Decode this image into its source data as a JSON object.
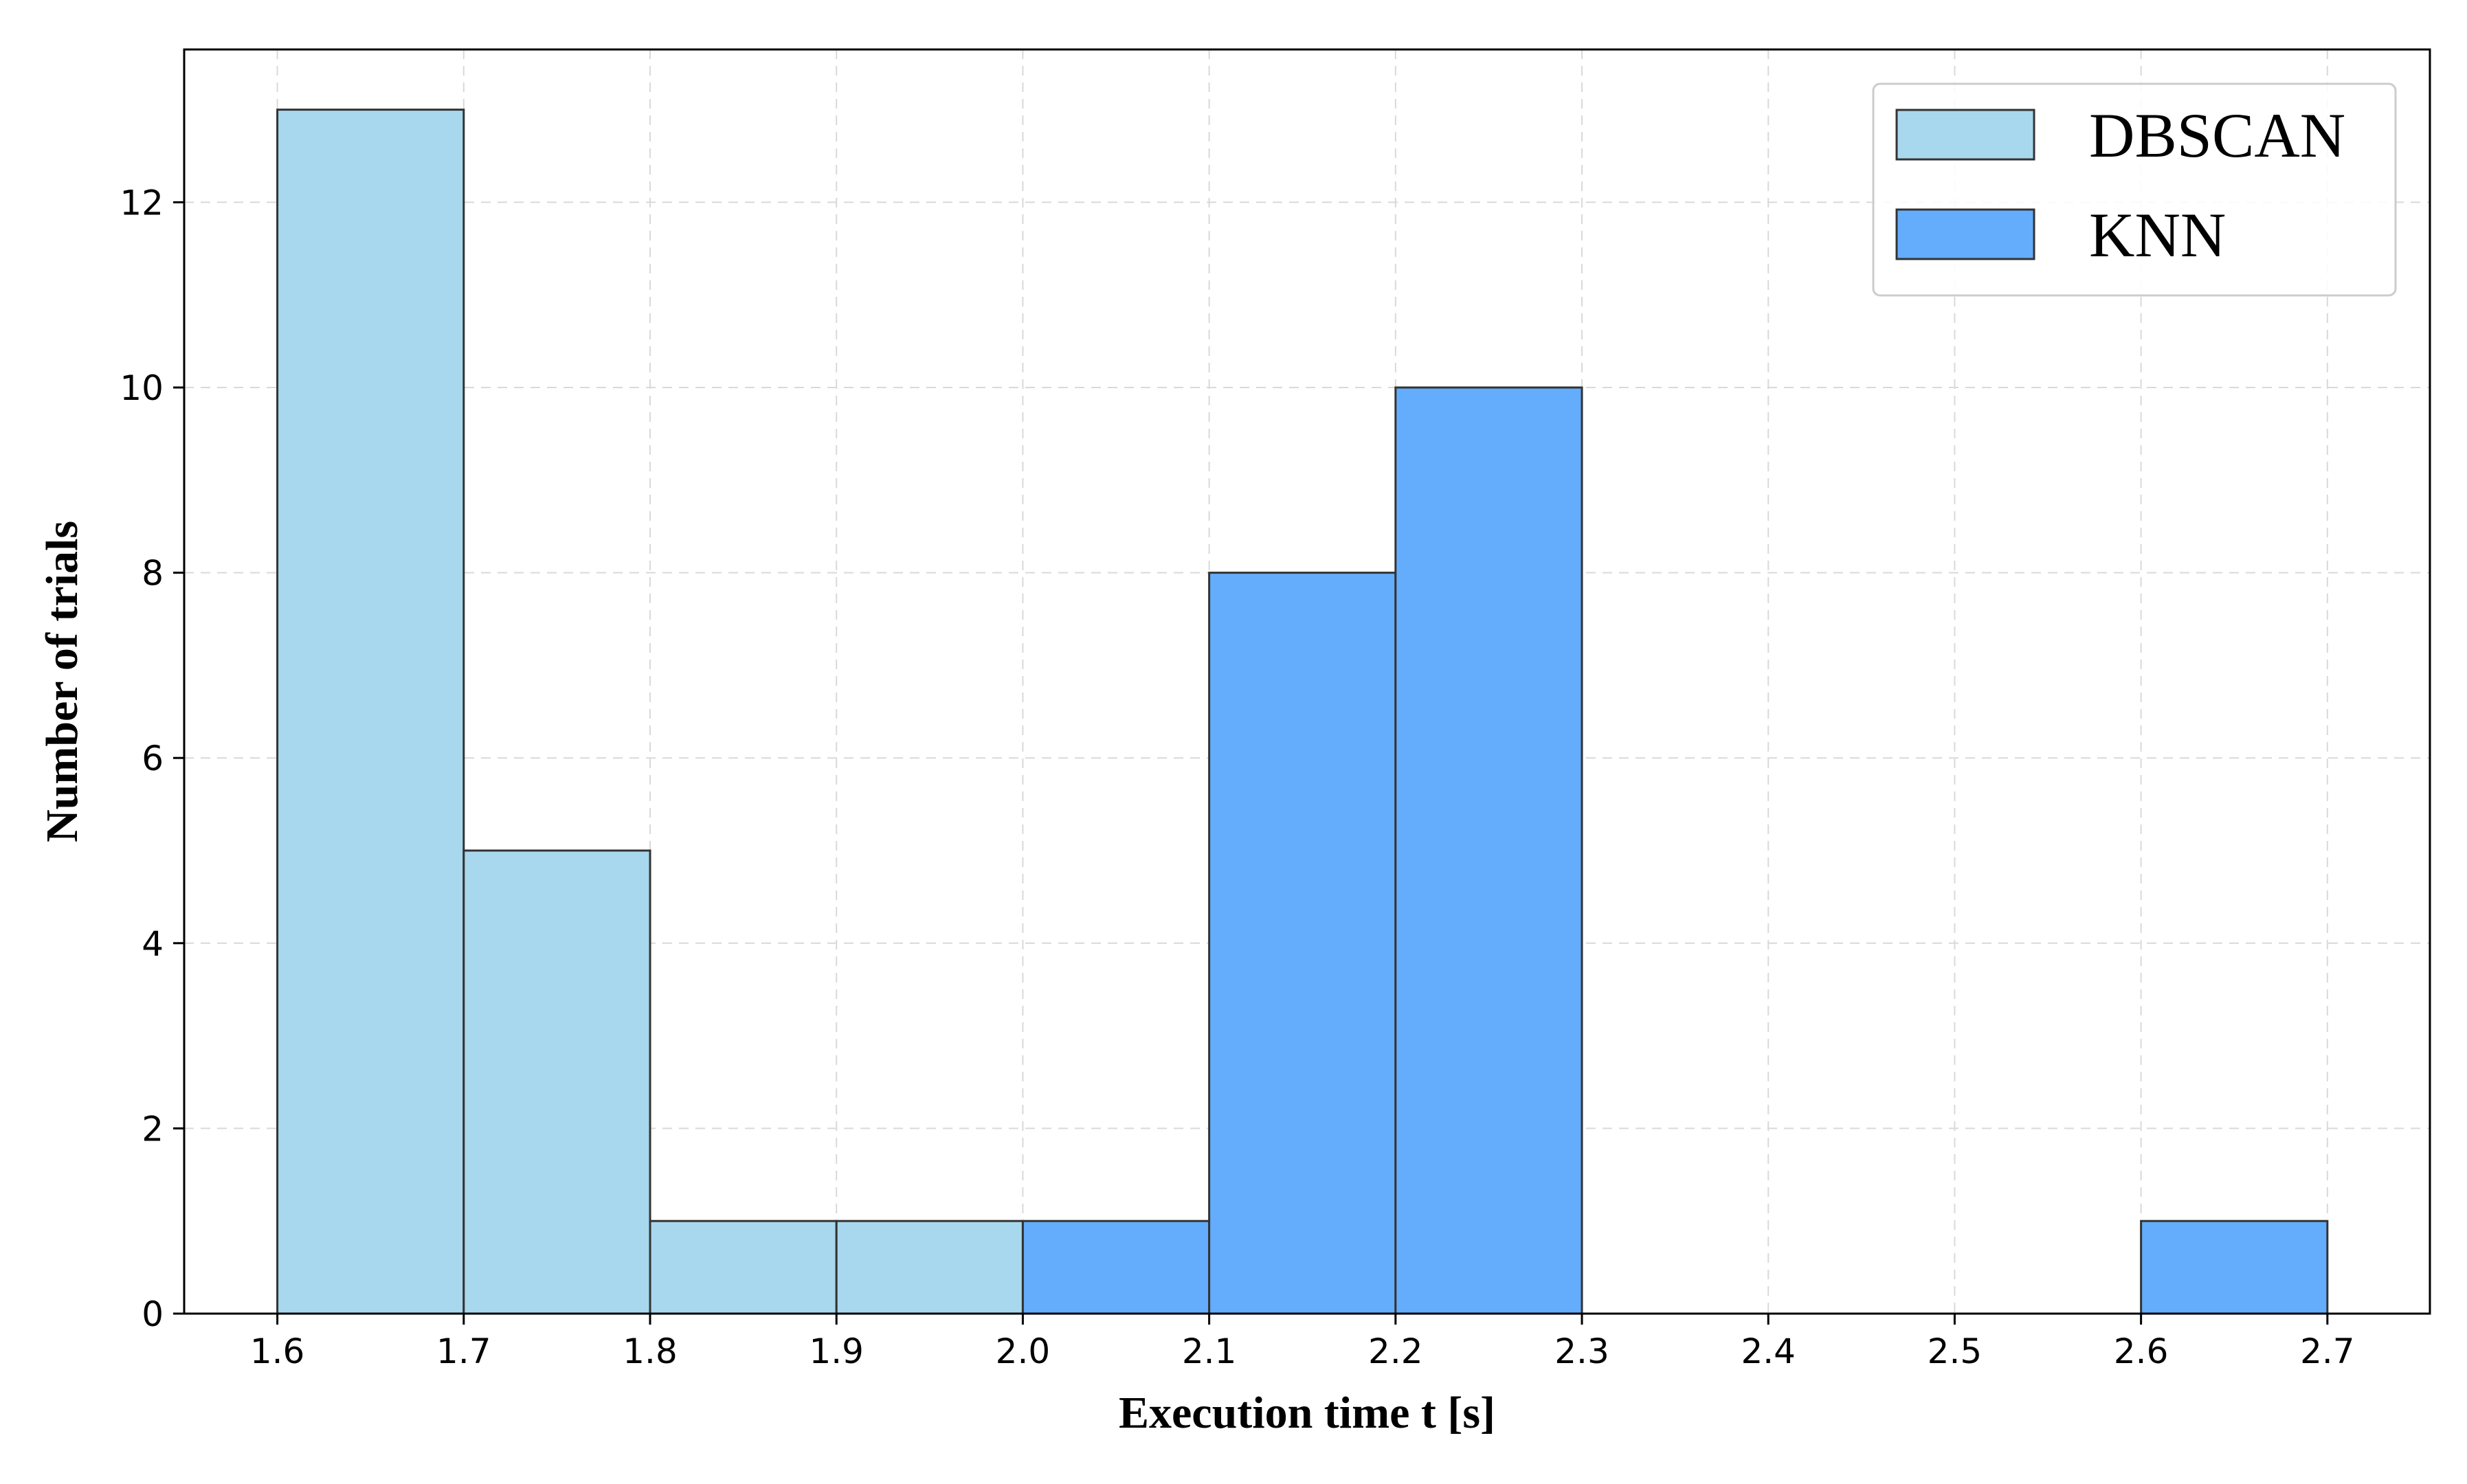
{
  "chart_data": {
    "type": "bar",
    "subtype": "histogram",
    "xlabel": "Execution time t [s]",
    "ylabel": "Number of trials",
    "xlim": [
      1.55,
      2.755
    ],
    "ylim": [
      0,
      13.65
    ],
    "x_ticks": [
      "1.6",
      "1.7",
      "1.8",
      "1.9",
      "2.0",
      "2.1",
      "2.2",
      "2.3",
      "2.4",
      "2.5",
      "2.6",
      "2.7"
    ],
    "y_ticks": [
      "0",
      "2",
      "4",
      "6",
      "8",
      "10",
      "12"
    ],
    "grid": true,
    "legend_position": "top-right",
    "series": [
      {
        "name": "DBSCAN",
        "color": "#a8d8ee",
        "bins": [
          {
            "x0": 1.6,
            "x1": 1.7,
            "count": 13
          },
          {
            "x0": 1.7,
            "x1": 1.8,
            "count": 5
          },
          {
            "x0": 1.8,
            "x1": 1.9,
            "count": 1
          },
          {
            "x0": 1.9,
            "x1": 2.0,
            "count": 1
          }
        ]
      },
      {
        "name": "KNN",
        "color": "#63adfc",
        "bins": [
          {
            "x0": 2.0,
            "x1": 2.1,
            "count": 1
          },
          {
            "x0": 2.1,
            "x1": 2.2,
            "count": 8
          },
          {
            "x0": 2.2,
            "x1": 2.3,
            "count": 10
          },
          {
            "x0": 2.3,
            "x1": 2.4,
            "count": 0
          },
          {
            "x0": 2.4,
            "x1": 2.5,
            "count": 0
          },
          {
            "x0": 2.5,
            "x1": 2.6,
            "count": 0
          },
          {
            "x0": 2.6,
            "x1": 2.7,
            "count": 1
          }
        ]
      }
    ]
  }
}
